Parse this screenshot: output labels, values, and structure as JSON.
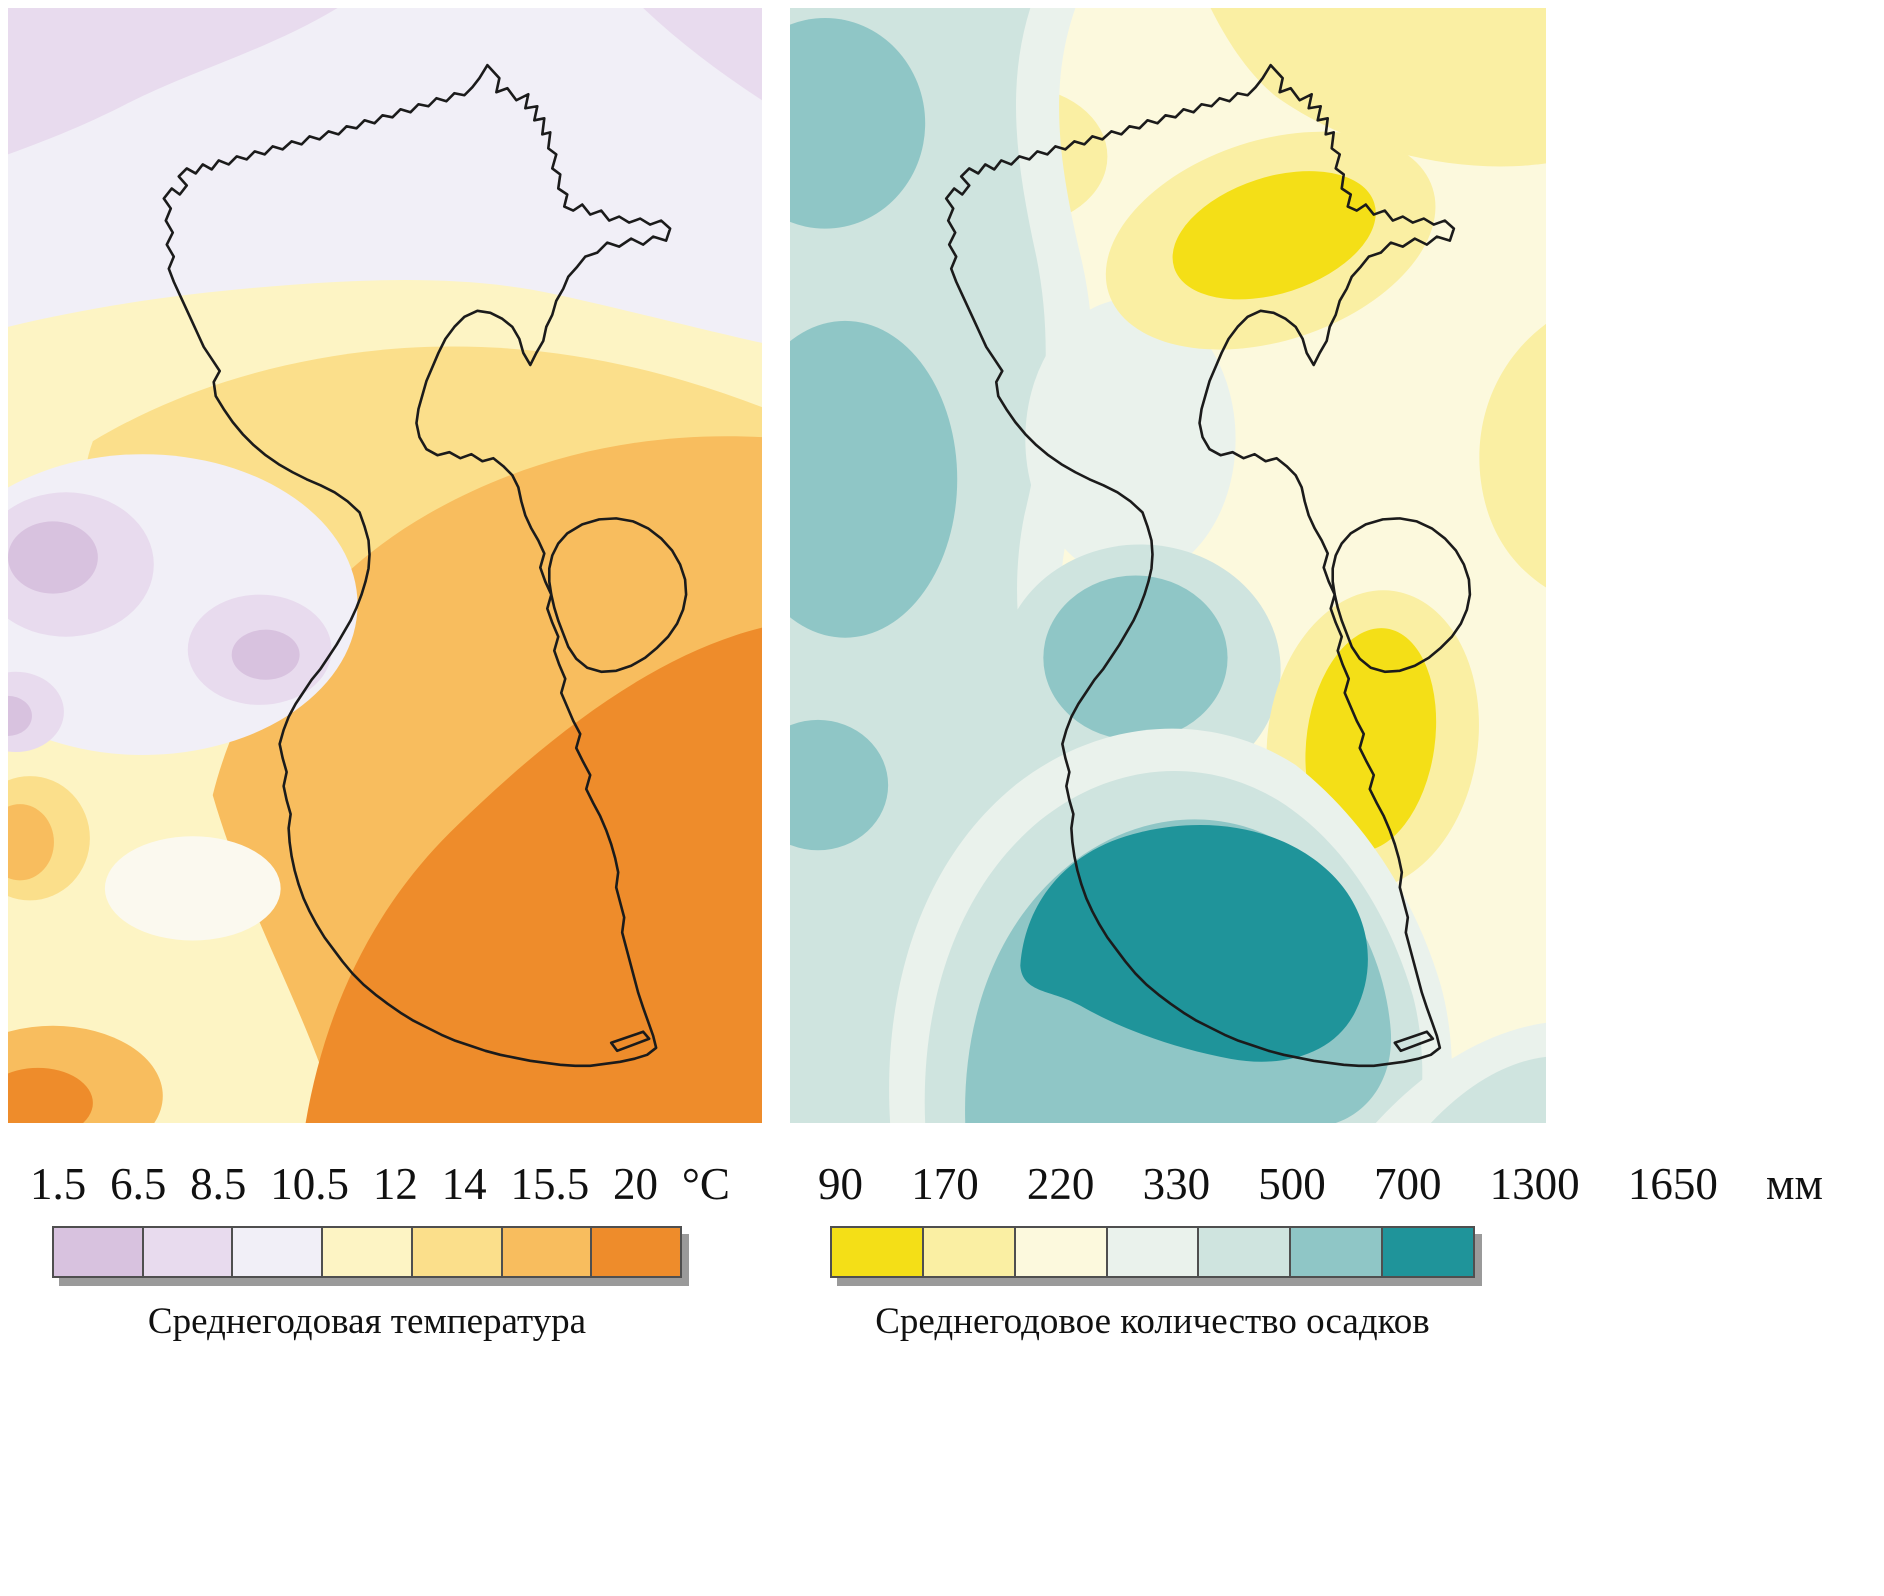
{
  "maps": [
    {
      "caption": "Среднегодовая температура",
      "unit": "°C",
      "legend_labels": [
        "1.5",
        "6.5",
        "8.5",
        "10.5",
        "12",
        "14",
        "15.5",
        "20"
      ],
      "colors": [
        "#d8c2df",
        "#e8dbee",
        "#f1eff7",
        "#fdf4c4",
        "#fbdf8b",
        "#f8bd5e",
        "#ee8c2b"
      ],
      "light_patch": "#fbf9ef"
    },
    {
      "caption": "Среднегодовое количество осадков",
      "unit": "мм",
      "legend_labels": [
        "90",
        "170",
        "220",
        "330",
        "500",
        "700",
        "1300",
        "1650"
      ],
      "colors": [
        "#f4df17",
        "#faefa3",
        "#fcf9dd",
        "#eaf2ec",
        "#cfe4df",
        "#8fc6c6",
        "#1f949a"
      ]
    }
  ],
  "outline_color": "#1b1b1b",
  "legend_style": {
    "border_color": "#4f4f4f",
    "shadow_color": "#9a9a9a"
  }
}
